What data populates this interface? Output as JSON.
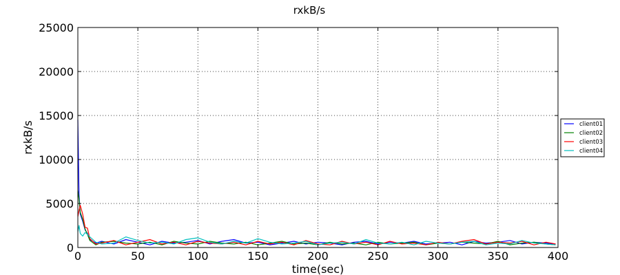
{
  "chart_data": {
    "type": "line",
    "title": "rxkB/s",
    "xlabel": "time(sec)",
    "ylabel": "rxkB/s",
    "xlim": [
      0,
      400
    ],
    "ylim": [
      0,
      25000
    ],
    "xticks": [
      0,
      50,
      100,
      150,
      200,
      250,
      300,
      350,
      400
    ],
    "yticks": [
      0,
      5000,
      10000,
      15000,
      20000,
      25000
    ],
    "grid": true,
    "legend_position": "right, outside plot",
    "series": [
      {
        "name": "client01",
        "color": "#0000ff",
        "x": [
          0,
          1,
          2,
          4,
          6,
          8,
          10,
          15,
          20,
          30,
          40,
          50,
          60,
          70,
          80,
          90,
          100,
          110,
          120,
          130,
          140,
          150,
          160,
          170,
          180,
          190,
          200,
          210,
          220,
          230,
          240,
          250,
          260,
          270,
          280,
          290,
          300,
          310,
          320,
          330,
          340,
          350,
          360,
          370,
          380,
          390,
          398
        ],
        "y": [
          14500,
          6000,
          3800,
          3000,
          2000,
          1600,
          900,
          500,
          700,
          400,
          900,
          600,
          300,
          700,
          500,
          600,
          800,
          400,
          700,
          900,
          500,
          600,
          300,
          500,
          700,
          400,
          600,
          500,
          300,
          600,
          700,
          400,
          600,
          500,
          700,
          400,
          500,
          600,
          300,
          700,
          500,
          600,
          800,
          400,
          600,
          500,
          400
        ]
      },
      {
        "name": "client02",
        "color": "#008000",
        "x": [
          0,
          1,
          2,
          4,
          6,
          8,
          10,
          15,
          20,
          30,
          40,
          50,
          60,
          70,
          80,
          90,
          100,
          110,
          120,
          130,
          140,
          150,
          160,
          170,
          180,
          190,
          200,
          210,
          220,
          230,
          240,
          250,
          260,
          270,
          280,
          290,
          300,
          310,
          320,
          330,
          340,
          350,
          360,
          370,
          380,
          390,
          398
        ],
        "y": [
          6500,
          5500,
          4000,
          3200,
          2100,
          1500,
          800,
          300,
          600,
          700,
          500,
          400,
          600,
          300,
          700,
          500,
          400,
          700,
          500,
          400,
          600,
          300,
          500,
          700,
          400,
          500,
          300,
          600,
          400,
          500,
          300,
          600,
          400,
          500,
          600,
          300,
          500,
          400,
          600,
          500,
          400,
          700,
          300,
          500,
          600,
          400,
          300
        ]
      },
      {
        "name": "client03",
        "color": "#ff0000",
        "x": [
          0,
          1,
          2,
          4,
          6,
          8,
          10,
          15,
          20,
          30,
          40,
          50,
          60,
          70,
          80,
          90,
          100,
          110,
          120,
          130,
          140,
          150,
          160,
          170,
          180,
          190,
          200,
          210,
          220,
          230,
          240,
          250,
          260,
          270,
          280,
          290,
          300,
          310,
          320,
          330,
          340,
          350,
          360,
          370,
          380,
          390,
          398
        ],
        "y": [
          3500,
          4200,
          4800,
          3800,
          2300,
          2200,
          1000,
          400,
          500,
          800,
          300,
          600,
          900,
          400,
          600,
          300,
          700,
          500,
          400,
          600,
          300,
          700,
          400,
          600,
          300,
          800,
          400,
          300,
          700,
          400,
          600,
          300,
          700,
          400,
          500,
          300,
          600,
          400,
          700,
          900,
          400,
          600,
          500,
          700,
          300,
          600,
          400
        ]
      },
      {
        "name": "client04",
        "color": "#00bfbf",
        "x": [
          0,
          1,
          2,
          4,
          6,
          8,
          10,
          15,
          20,
          30,
          40,
          50,
          60,
          70,
          80,
          90,
          100,
          110,
          120,
          130,
          140,
          150,
          160,
          170,
          180,
          190,
          200,
          210,
          220,
          230,
          240,
          250,
          260,
          270,
          280,
          290,
          300,
          310,
          320,
          330,
          340,
          350,
          360,
          370,
          380,
          390,
          398
        ],
        "y": [
          1800,
          2500,
          1600,
          1300,
          1700,
          1500,
          1200,
          600,
          400,
          500,
          1200,
          800,
          500,
          600,
          400,
          900,
          1100,
          600,
          400,
          700,
          500,
          1000,
          600,
          400,
          500,
          700,
          300,
          500,
          600,
          400,
          900,
          500,
          400,
          600,
          300,
          700,
          500,
          400,
          600,
          700,
          300,
          500,
          400,
          800,
          500,
          400,
          300
        ]
      }
    ]
  }
}
